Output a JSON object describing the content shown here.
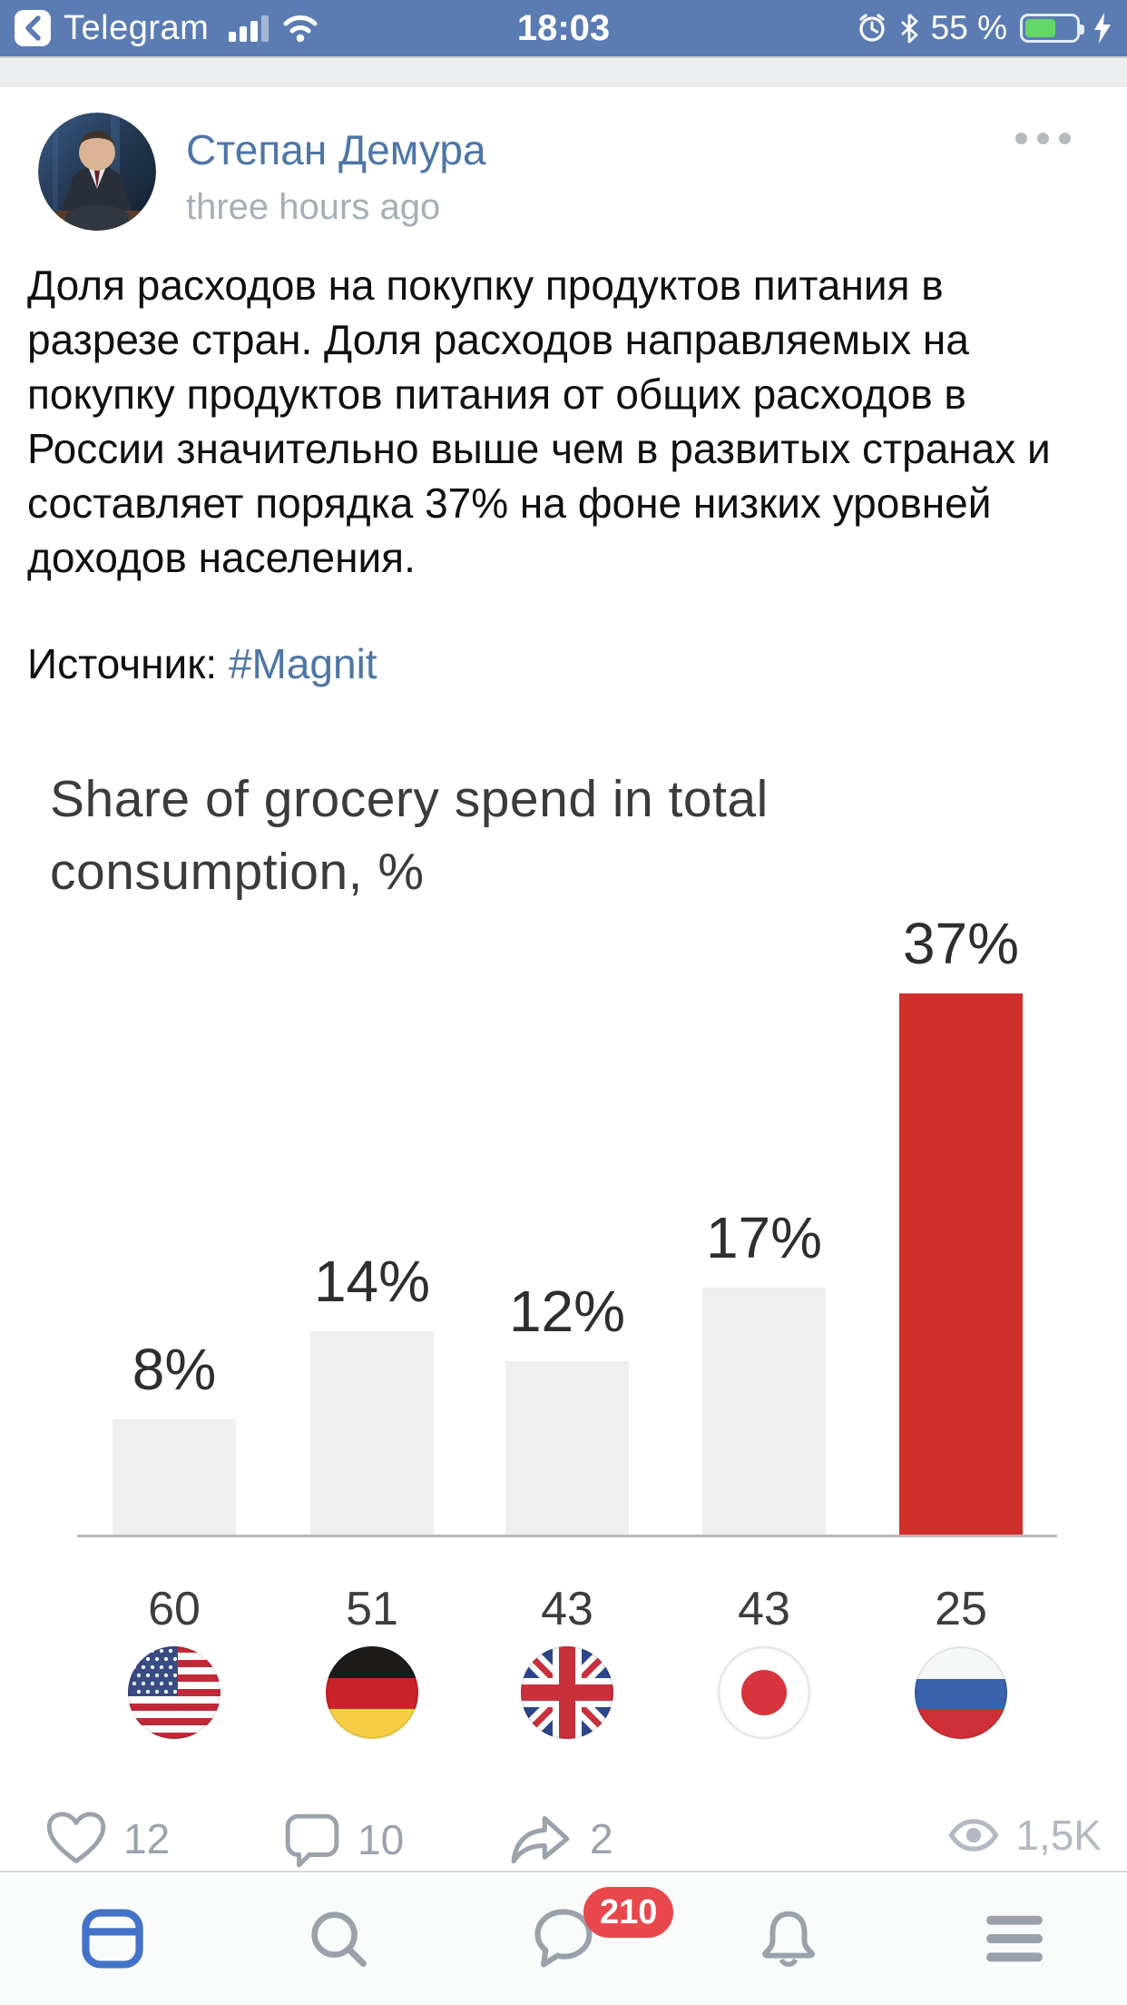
{
  "status_bar": {
    "back_app_label": "Telegram",
    "time": "18:03",
    "battery_percent": "55 %"
  },
  "post": {
    "author": "Степан Демура",
    "time_ago": "three hours ago",
    "body": "Доля расходов на покупку продуктов питания в разрезе стран. Доля расходов направляемых на покупку продуктов питания от общих расходов в России значительно выше чем в развитых странах и составляет порядка 37% на фоне низких уровней доходов населения.",
    "source_label": "Источник:",
    "source_link": "#Magnit"
  },
  "actions": {
    "likes": "12",
    "comments": "10",
    "shares": "2",
    "views": "1,5K"
  },
  "tab_bar": {
    "messages_badge": "210"
  },
  "chart_data": {
    "type": "bar",
    "title": "Share of grocery spend in total consumption, %",
    "categories": [
      "United States",
      "Germany",
      "United Kingdom",
      "Japan",
      "Russia"
    ],
    "flag_codes": [
      "us",
      "de",
      "gb",
      "jp",
      "ru"
    ],
    "values": [
      8,
      14,
      12,
      17,
      37
    ],
    "bar_labels": [
      "8%",
      "14%",
      "12%",
      "17%",
      "37%"
    ],
    "bottom_row_values": [
      "60",
      "51",
      "43",
      "43",
      "25"
    ],
    "highlight_index": 4,
    "bar_color_default": "#efefef",
    "bar_color_highlight": "#d0302c",
    "ylim": [
      0,
      40
    ],
    "grid": false,
    "legend": false,
    "layout": "value labels above bars, secondary values and country flags below baseline"
  },
  "colors": {
    "status-bar-blue": "#5b7cb3",
    "battery-green": "#63d768",
    "link-blue": "#4d76a6",
    "bar-red": "#d0302c",
    "bar-gray": "#efefef",
    "axis-gray": "#b8b8b8",
    "action-gray": "#9aa2ac",
    "views-gray": "#b3b9c2",
    "badge-red": "#e8484c",
    "tab-active-blue": "#4273c8",
    "tab-inactive-gray": "#9aa1aa"
  }
}
